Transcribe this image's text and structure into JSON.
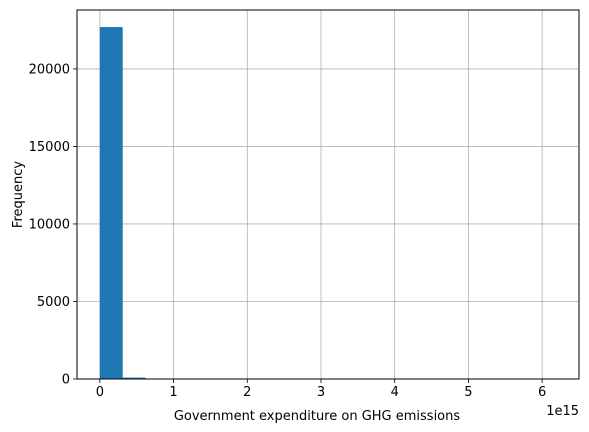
{
  "chart_data": {
    "type": "bar",
    "xlabel": "Government expenditure on GHG emissions",
    "ylabel": "Frequency",
    "x_offset_label": "1e15",
    "xlim": [
      -0.31,
      6.5
    ],
    "ylim": [
      0,
      23800
    ],
    "grid": true,
    "bar_color": "#1f77b4",
    "grid_color": "#b0b0b0",
    "bins": [
      {
        "x0": 0.0,
        "x1": 0.31,
        "count": 22700
      },
      {
        "x0": 0.31,
        "x1": 0.62,
        "count": 90
      },
      {
        "x0": 0.62,
        "x1": 0.93,
        "count": 10
      },
      {
        "x0": 0.93,
        "x1": 1.24,
        "count": 5
      },
      {
        "x0": 1.24,
        "x1": 1.55,
        "count": 3
      },
      {
        "x0": 1.55,
        "x1": 1.86,
        "count": 2
      },
      {
        "x0": 1.86,
        "x1": 2.17,
        "count": 2
      },
      {
        "x0": 2.17,
        "x1": 2.48,
        "count": 1
      },
      {
        "x0": 2.48,
        "x1": 2.79,
        "count": 1
      },
      {
        "x0": 2.79,
        "x1": 3.1,
        "count": 1
      },
      {
        "x0": 3.1,
        "x1": 3.41,
        "count": 1
      },
      {
        "x0": 3.41,
        "x1": 3.72,
        "count": 1
      },
      {
        "x0": 3.72,
        "x1": 4.03,
        "count": 1
      },
      {
        "x0": 4.03,
        "x1": 4.34,
        "count": 1
      },
      {
        "x0": 4.34,
        "x1": 4.65,
        "count": 1
      },
      {
        "x0": 4.65,
        "x1": 4.96,
        "count": 1
      },
      {
        "x0": 4.96,
        "x1": 5.27,
        "count": 1
      },
      {
        "x0": 5.27,
        "x1": 5.58,
        "count": 1
      },
      {
        "x0": 5.58,
        "x1": 5.89,
        "count": 1
      },
      {
        "x0": 5.89,
        "x1": 6.2,
        "count": 1
      }
    ],
    "xticks": [
      {
        "value": 0,
        "label": "0"
      },
      {
        "value": 1,
        "label": "1"
      },
      {
        "value": 2,
        "label": "2"
      },
      {
        "value": 3,
        "label": "3"
      },
      {
        "value": 4,
        "label": "4"
      },
      {
        "value": 5,
        "label": "5"
      },
      {
        "value": 6,
        "label": "6"
      }
    ],
    "yticks": [
      {
        "value": 0,
        "label": "0"
      },
      {
        "value": 5000,
        "label": "5000"
      },
      {
        "value": 10000,
        "label": "10000"
      },
      {
        "value": 15000,
        "label": "15000"
      },
      {
        "value": 20000,
        "label": "20000"
      }
    ]
  }
}
